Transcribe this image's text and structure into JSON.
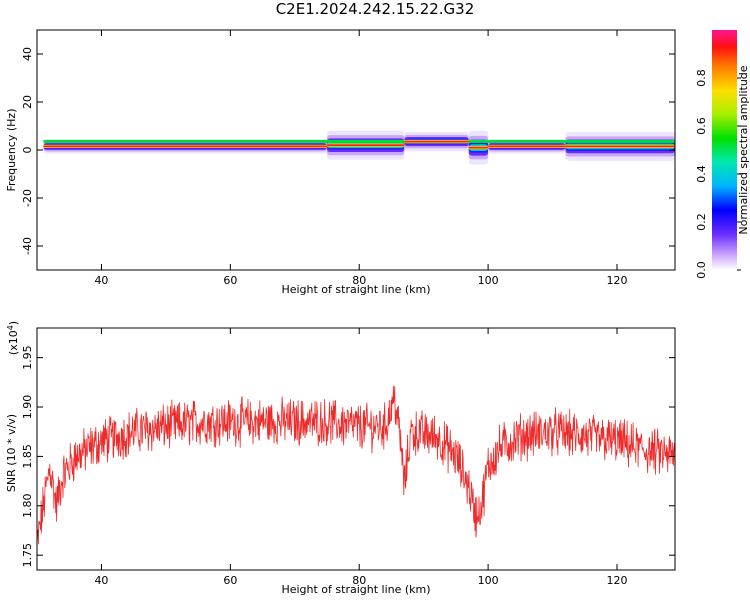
{
  "title": "C2E1.2024.242.15.22.G32",
  "chart_data": [
    {
      "type": "heatmap",
      "xlabel": "Height of straight line (km)",
      "ylabel": "Frequency (Hz)",
      "xlim": [
        30,
        129
      ],
      "ylim": [
        -50,
        50
      ],
      "xticks": [
        "40",
        "60",
        "80",
        "100",
        "120"
      ],
      "yticks": [
        "40",
        "20",
        "0",
        "-20",
        "-40"
      ],
      "ridge": [
        {
          "x0": 31,
          "x1": 75,
          "y": 1.5,
          "spread": 3
        },
        {
          "x0": 75,
          "x1": 87,
          "y": 2,
          "spread": 6
        },
        {
          "x0": 87,
          "x1": 97,
          "y": 3.5,
          "spread": 4
        },
        {
          "x0": 97,
          "x1": 100,
          "y": 1,
          "spread": 7
        },
        {
          "x0": 100,
          "x1": 112,
          "y": 1.5,
          "spread": 3
        },
        {
          "x0": 112,
          "x1": 129,
          "y": 1.5,
          "spread": 6
        }
      ]
    },
    {
      "type": "line",
      "xlabel": "Height of straight line (km)",
      "ylabel": "SNR (10 * v/v)",
      "yscale_label": "(x10",
      "yscale_exp": "4",
      "yscale_close": ")",
      "xlim": [
        30,
        129
      ],
      "ylim": [
        1.735,
        1.98
      ],
      "xticks": [
        "40",
        "60",
        "80",
        "100",
        "120"
      ],
      "yticks": [
        "1.75",
        "1.80",
        "1.85",
        "1.90",
        "1.95"
      ],
      "color": "#ee2b2b",
      "trend": [
        [
          30,
          1.76
        ],
        [
          31,
          1.8
        ],
        [
          32,
          1.84
        ],
        [
          33,
          1.8
        ],
        [
          34,
          1.83
        ],
        [
          36,
          1.85
        ],
        [
          40,
          1.865
        ],
        [
          45,
          1.875
        ],
        [
          50,
          1.88
        ],
        [
          55,
          1.885
        ],
        [
          60,
          1.885
        ],
        [
          65,
          1.885
        ],
        [
          70,
          1.885
        ],
        [
          75,
          1.885
        ],
        [
          80,
          1.88
        ],
        [
          84,
          1.88
        ],
        [
          85.5,
          1.91
        ],
        [
          86.5,
          1.86
        ],
        [
          87,
          1.82
        ],
        [
          88,
          1.875
        ],
        [
          92,
          1.87
        ],
        [
          95,
          1.85
        ],
        [
          97,
          1.82
        ],
        [
          98,
          1.79
        ],
        [
          99,
          1.8
        ],
        [
          100,
          1.84
        ],
        [
          102,
          1.86
        ],
        [
          105,
          1.87
        ],
        [
          110,
          1.875
        ],
        [
          115,
          1.87
        ],
        [
          120,
          1.865
        ],
        [
          125,
          1.855
        ],
        [
          129,
          1.85
        ]
      ]
    }
  ],
  "colorbar": {
    "label": "Normalized spectral amplitude",
    "ticks": [
      "0.0",
      "0.2",
      "0.4",
      "0.6",
      "0.8"
    ]
  }
}
